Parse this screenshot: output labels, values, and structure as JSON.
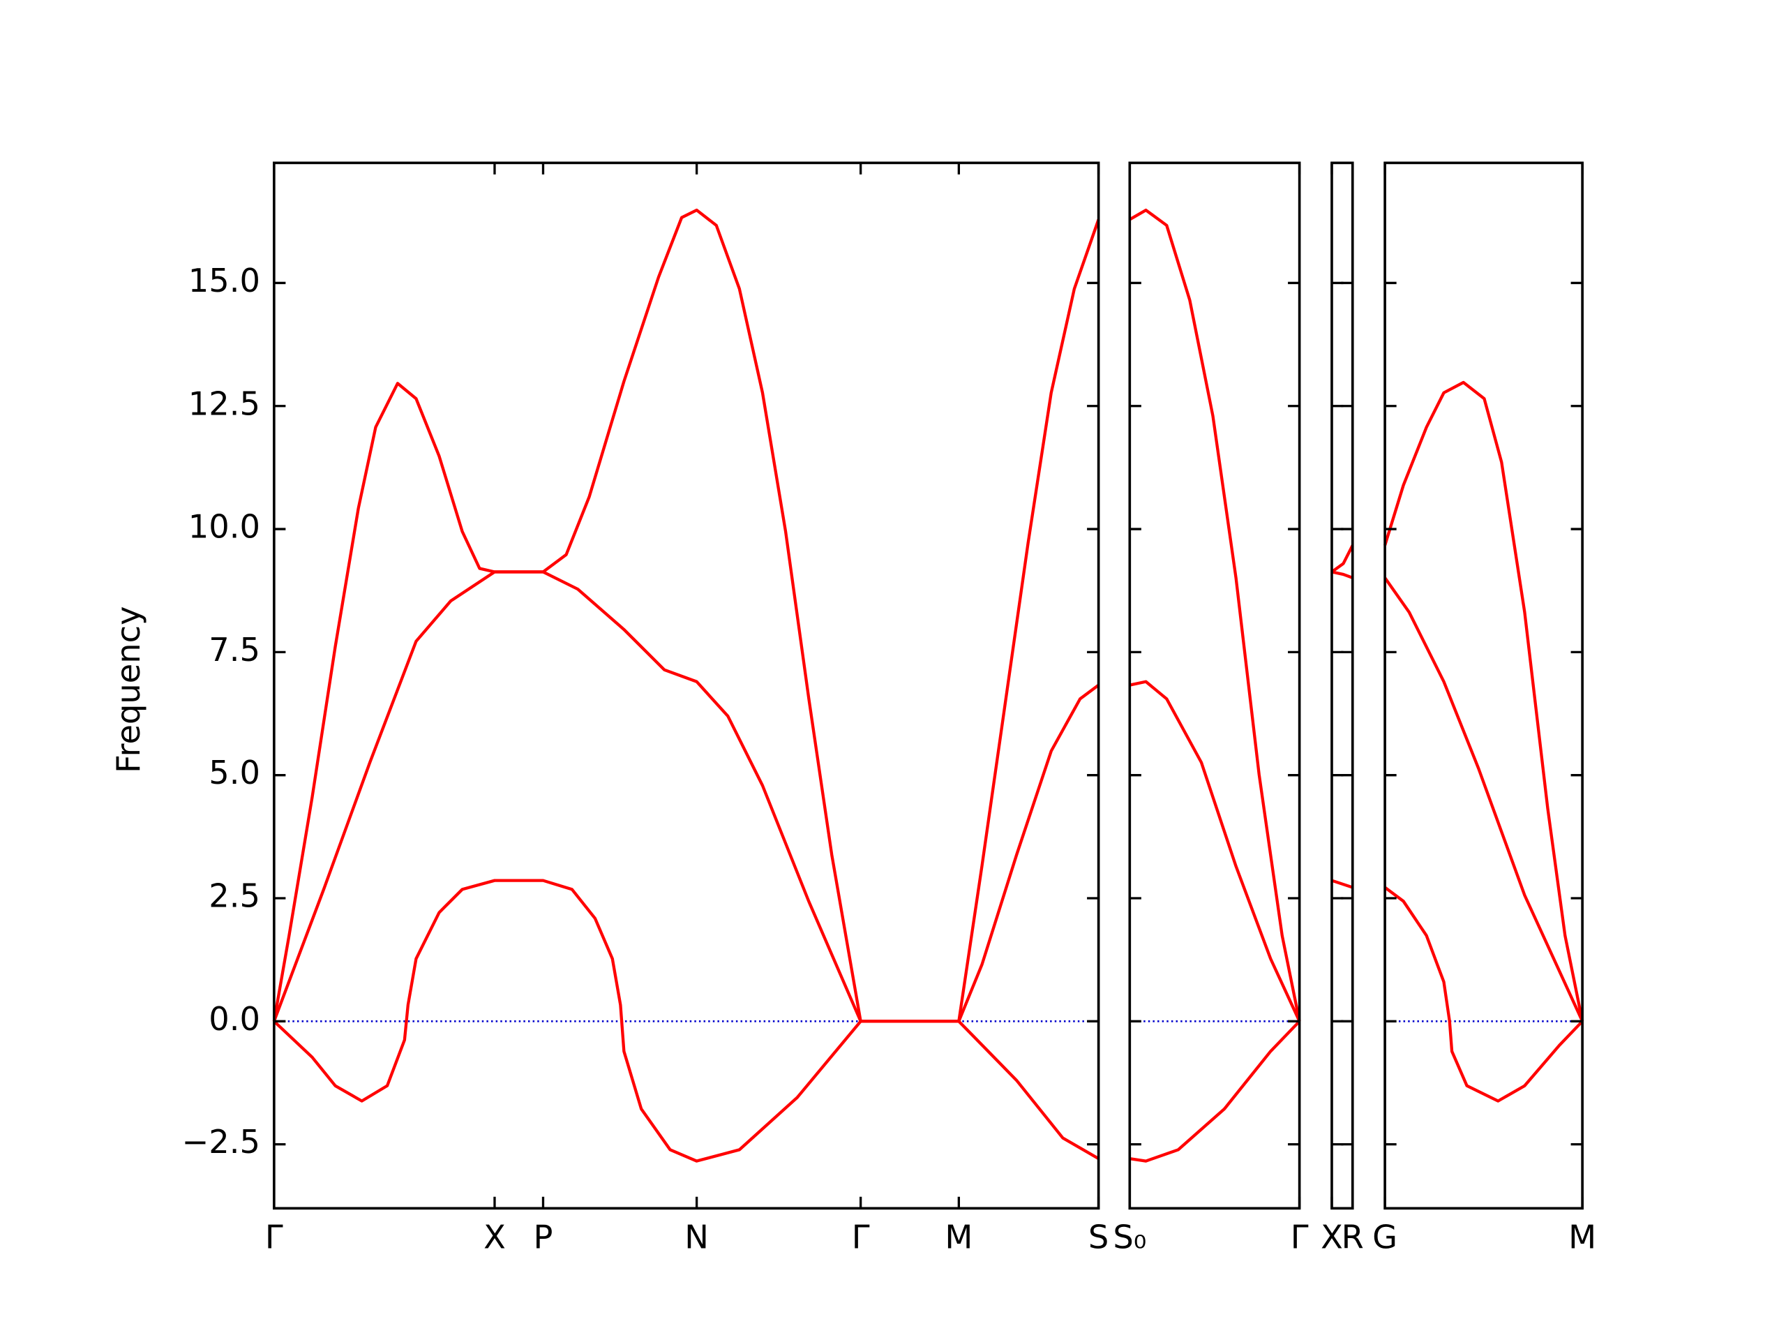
{
  "chart_data": [
    {
      "type": "line",
      "ylabel": "Frequency",
      "xlim": [
        0,
        7.14
      ],
      "ylim": [
        -3.8,
        17.44
      ],
      "xticks": [
        {
          "value": 0,
          "label": "Γ"
        },
        {
          "value": 1.91,
          "label": "X"
        },
        {
          "value": 2.33,
          "label": "P"
        },
        {
          "value": 3.66,
          "label": "N"
        },
        {
          "value": 5.08,
          "label": "Γ"
        },
        {
          "value": 5.93,
          "label": "M"
        },
        {
          "value": 7.14,
          "label": "S"
        }
      ],
      "yticks": [
        {
          "value": -2.5,
          "label": "−2.5"
        },
        {
          "value": 0,
          "label": "0.0"
        },
        {
          "value": 2.5,
          "label": "2.5"
        },
        {
          "value": 5,
          "label": "5.0"
        },
        {
          "value": 7.5,
          "label": "7.5"
        },
        {
          "value": 10,
          "label": "10.0"
        },
        {
          "value": 12.5,
          "label": "12.5"
        },
        {
          "value": 15,
          "label": "15.0"
        }
      ],
      "show_ytick_labels": true,
      "hlines": [
        {
          "value": 0,
          "color": "#0000cc",
          "style": "dotted"
        }
      ],
      "series": [
        {
          "color": "#ff0000",
          "x": [
            0,
            0.33,
            0.53,
            0.76,
            0.98,
            1.13,
            1.16,
            1.23,
            1.43,
            1.63,
            1.91,
            2.33,
            2.58,
            2.78,
            2.93,
            3.0,
            3.03,
            3.18,
            3.43,
            3.66,
            4.03,
            4.53,
            5.08,
            5.93,
            6.43,
            6.83,
            7.14
          ],
          "values": [
            0,
            -0.73,
            -1.31,
            -1.62,
            -1.31,
            -0.38,
            0.33,
            1.27,
            2.21,
            2.68,
            2.86,
            2.86,
            2.68,
            2.09,
            1.27,
            0.33,
            -0.61,
            -1.78,
            -2.61,
            -2.84,
            -2.61,
            -1.55,
            0,
            0,
            -1.2,
            -2.37,
            -2.79
          ]
        },
        {
          "color": "#ff0000",
          "x": [
            0,
            0.43,
            0.83,
            1.23,
            1.53,
            1.91,
            2.33,
            2.63,
            3.03,
            3.38,
            3.66,
            3.93,
            4.23,
            4.63,
            5.08,
            5.93,
            6.13,
            6.43,
            6.73,
            6.98,
            7.14
          ],
          "values": [
            0,
            2.68,
            5.26,
            7.72,
            8.54,
            9.13,
            9.13,
            8.78,
            7.96,
            7.14,
            6.9,
            6.2,
            4.79,
            2.44,
            0,
            0,
            1.15,
            3.38,
            5.49,
            6.55,
            6.83
          ]
        },
        {
          "color": "#ff0000",
          "x": [
            0,
            0.13,
            0.33,
            0.53,
            0.73,
            0.88,
            1.07,
            1.23,
            1.43,
            1.63,
            1.78,
            1.91,
            2.33,
            2.53,
            2.73,
            3.03,
            3.33,
            3.53,
            3.66,
            3.83,
            4.03,
            4.23,
            4.43,
            4.63,
            4.83,
            5.08,
            5.93,
            6.13,
            6.33,
            6.53,
            6.73,
            6.93,
            7.14
          ],
          "values": [
            0,
            1.74,
            4.55,
            7.61,
            10.42,
            12.07,
            12.96,
            12.65,
            11.48,
            9.95,
            9.2,
            9.13,
            9.13,
            9.48,
            10.66,
            13.0,
            15.12,
            16.33,
            16.48,
            16.17,
            14.88,
            12.77,
            9.95,
            6.57,
            3.38,
            0,
            0,
            3.15,
            6.43,
            9.72,
            12.77,
            14.88,
            16.29
          ]
        }
      ]
    },
    {
      "type": "line",
      "xlim": [
        0,
        1.47
      ],
      "ylim": [
        -3.8,
        17.44
      ],
      "xticks": [
        {
          "value": 0,
          "label": "S₀"
        },
        {
          "value": 1.47,
          "label": "Γ"
        }
      ],
      "yticks": [
        -2.5,
        0,
        2.5,
        5,
        7.5,
        10,
        12.5,
        15
      ],
      "show_ytick_labels": false,
      "hlines": [
        {
          "value": 0,
          "color": "#0000cc",
          "style": "dotted"
        }
      ],
      "series": [
        {
          "color": "#ff0000",
          "x": [
            0,
            0.14,
            0.42,
            0.82,
            1.22,
            1.47
          ],
          "values": [
            -2.79,
            -2.84,
            -2.61,
            -1.78,
            -0.61,
            0
          ]
        },
        {
          "color": "#ff0000",
          "x": [
            0,
            0.14,
            0.32,
            0.62,
            0.92,
            1.22,
            1.47
          ],
          "values": [
            6.83,
            6.9,
            6.55,
            5.26,
            3.15,
            1.27,
            0
          ]
        },
        {
          "color": "#ff0000",
          "x": [
            0,
            0.14,
            0.32,
            0.52,
            0.72,
            0.92,
            1.12,
            1.32,
            1.47
          ],
          "values": [
            16.29,
            16.48,
            16.17,
            14.65,
            12.3,
            9.01,
            5.02,
            1.74,
            0
          ]
        }
      ]
    },
    {
      "type": "line",
      "xlim": [
        0,
        0.18
      ],
      "ylim": [
        -3.8,
        17.44
      ],
      "xticks": [
        {
          "value": 0,
          "label": "X"
        },
        {
          "value": 0.18,
          "label": "R"
        }
      ],
      "yticks": [
        -2.5,
        0,
        2.5,
        5,
        7.5,
        10,
        12.5,
        15
      ],
      "show_ytick_labels": false,
      "hlines": [
        {
          "value": 0,
          "color": "#0000cc",
          "style": "dotted"
        }
      ],
      "series": [
        {
          "color": "#ff0000",
          "x": [
            0,
            0.18
          ],
          "values": [
            2.86,
            2.72
          ]
        },
        {
          "color": "#ff0000",
          "x": [
            0,
            0.1,
            0.18
          ],
          "values": [
            9.13,
            9.08,
            9.01
          ]
        },
        {
          "color": "#ff0000",
          "x": [
            0,
            0.1,
            0.18
          ],
          "values": [
            9.13,
            9.3,
            9.67
          ]
        }
      ]
    },
    {
      "type": "line",
      "xlim": [
        0,
        1.71
      ],
      "ylim": [
        -3.8,
        17.44
      ],
      "xticks": [
        {
          "value": 0,
          "label": "G"
        },
        {
          "value": 1.71,
          "label": "M"
        }
      ],
      "yticks": [
        -2.5,
        0,
        2.5,
        5,
        7.5,
        10,
        12.5,
        15
      ],
      "show_ytick_labels": false,
      "hlines": [
        {
          "value": 0,
          "color": "#0000cc",
          "style": "dotted"
        }
      ],
      "series": [
        {
          "color": "#ff0000",
          "x": [
            0,
            0.16,
            0.36,
            0.51,
            0.56,
            0.58,
            0.71,
            0.98,
            1.21,
            1.51,
            1.71
          ],
          "values": [
            2.72,
            2.44,
            1.74,
            0.8,
            0,
            -0.61,
            -1.31,
            -1.62,
            -1.31,
            -0.49,
            0
          ]
        },
        {
          "color": "#ff0000",
          "x": [
            0,
            0.21,
            0.51,
            0.81,
            1.21,
            1.71
          ],
          "values": [
            9.01,
            8.31,
            6.9,
            5.14,
            2.56,
            0
          ]
        },
        {
          "color": "#ff0000",
          "x": [
            0,
            0.16,
            0.36,
            0.51,
            0.68,
            0.86,
            1.01,
            1.21,
            1.41,
            1.56,
            1.71
          ],
          "values": [
            9.67,
            10.89,
            12.07,
            12.77,
            12.98,
            12.65,
            11.36,
            8.31,
            4.32,
            1.74,
            0
          ]
        }
      ]
    }
  ]
}
